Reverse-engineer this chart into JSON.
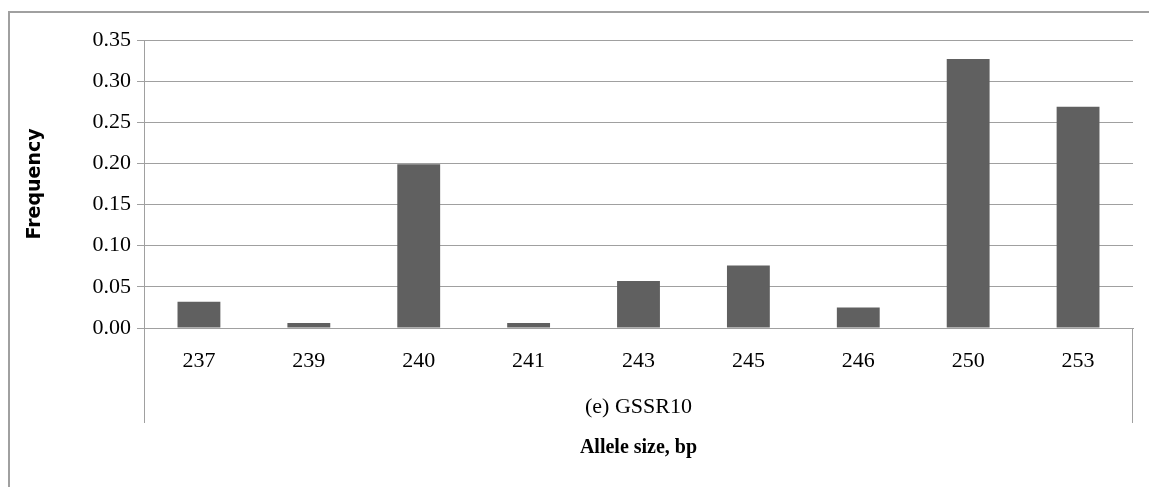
{
  "chart_data": {
    "type": "bar",
    "xlabel": "Allele size, bp",
    "ylabel": "Frequency",
    "categories": [
      "237",
      "239",
      "240",
      "241",
      "243",
      "245",
      "246",
      "250",
      "253"
    ],
    "values": [
      0.032,
      0.006,
      0.199,
      0.006,
      0.057,
      0.076,
      0.025,
      0.327,
      0.269
    ],
    "color": "#606060",
    "ylim": [
      0,
      0.35
    ],
    "yticks": [
      {
        "value": 0,
        "label": "0.00"
      },
      {
        "value": 0.05,
        "label": "0.05"
      },
      {
        "value": 0.1,
        "label": "0.10"
      },
      {
        "value": 0.15,
        "label": "0.15"
      },
      {
        "value": 0.2,
        "label": "0.20"
      },
      {
        "value": 0.25,
        "label": "0.25"
      },
      {
        "value": 0.3,
        "label": "0.30"
      },
      {
        "value": 0.35,
        "label": "0.35"
      }
    ],
    "grid": "y",
    "legend": false,
    "annotations": [
      "(e) GSSR10"
    ]
  }
}
